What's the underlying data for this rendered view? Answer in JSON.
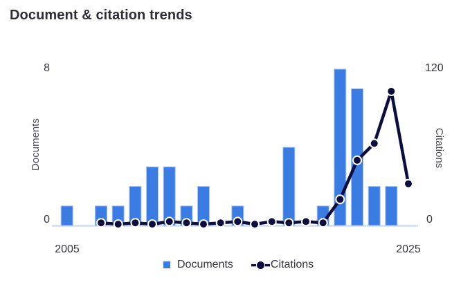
{
  "chart_data": {
    "type": "bar",
    "combo": "bar+line, dual y-axis",
    "title": "Document & citation trends",
    "categories": [
      "2005",
      "2006",
      "2007",
      "2008",
      "2009",
      "2010",
      "2011",
      "2012",
      "2013",
      "2014",
      "2015",
      "2016",
      "2017",
      "2018",
      "2019",
      "2020",
      "2021",
      "2022",
      "2023",
      "2024",
      "2025"
    ],
    "series": [
      {
        "name": "Documents",
        "type": "bar",
        "axis": "left",
        "values": [
          1,
          0,
          1,
          1,
          2,
          3,
          3,
          1,
          2,
          0,
          1,
          0,
          0,
          4,
          0,
          1,
          8,
          7,
          2,
          2,
          0
        ]
      },
      {
        "name": "Citations",
        "type": "line",
        "axis": "right",
        "values": [
          null,
          null,
          2,
          1,
          2,
          1,
          3,
          2,
          1,
          2,
          3,
          1,
          3,
          2,
          3,
          2,
          20,
          50,
          63,
          103,
          32
        ]
      }
    ],
    "left_axis": {
      "title": "Documents",
      "min": 0,
      "max": 8
    },
    "right_axis": {
      "title": "Citations",
      "min": 0,
      "max": 120
    },
    "x_axis": {
      "visible_ticks": [
        "2005",
        "2025"
      ]
    },
    "grid": false,
    "legend_position": "bottom",
    "colors": {
      "documents": "#3b7ce3",
      "bar_edge": "#a7c3f2",
      "citations": "#0d0d3f",
      "dot_ring": "#ffffff",
      "axis_line": "#ccdcf6",
      "title_text": "#2e2e36",
      "tick_text": "#33333b",
      "axis_title_text": "#4a4a52"
    }
  },
  "legend": {
    "documents_label": "Documents",
    "citations_label": "Citations"
  }
}
